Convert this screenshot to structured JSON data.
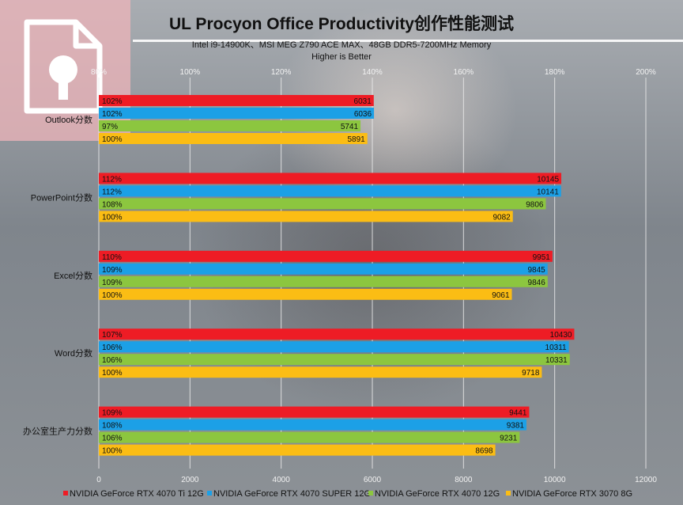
{
  "chart_data": {
    "type": "bar",
    "orientation": "horizontal",
    "title": "UL Procyon Office Productivity创作性能测试",
    "subtitle_lines": [
      "Intel i9-14900K、MSI MEG Z790 ACE MAX、48GB DDR5-7200MHz Memory",
      "Higher is Better"
    ],
    "categories": [
      "Outlook分数",
      "PowerPoint分数",
      "Excel分数",
      "Word分数",
      "办公室生产力分数"
    ],
    "x_top": {
      "min": 80,
      "max": 200,
      "step": 20,
      "suffix": "%"
    },
    "x_bottom": {
      "min": 0,
      "max": 12000,
      "step": 2000
    },
    "grid": true,
    "legend_position": "bottom",
    "series": [
      {
        "name": "NVIDIA GeForce RTX 4070 Ti 12G",
        "color": "#ee1c25",
        "values": [
          6031,
          10145,
          9951,
          10430,
          9441
        ],
        "percent": [
          "102%",
          "112%",
          "110%",
          "107%",
          "109%"
        ]
      },
      {
        "name": "NVIDIA GeForce RTX 4070 SUPER 12G",
        "color": "#1ca0e6",
        "values": [
          6036,
          10141,
          9845,
          10311,
          9381
        ],
        "percent": [
          "102%",
          "112%",
          "109%",
          "106%",
          "108%"
        ]
      },
      {
        "name": "NVIDIA GeForce RTX 4070 12G",
        "color": "#8cc63f",
        "values": [
          5741,
          9806,
          9846,
          10331,
          9231
        ],
        "percent": [
          "97%",
          "108%",
          "109%",
          "106%",
          "106%"
        ]
      },
      {
        "name": "NVIDIA GeForce RTX 3070 8G",
        "color": "#fbbd14",
        "values": [
          5891,
          9082,
          9061,
          9718,
          8698
        ],
        "percent": [
          "100%",
          "100%",
          "100%",
          "100%",
          "100%"
        ]
      }
    ]
  },
  "logo": {
    "name": "document-logo-icon",
    "color": "#ffffff"
  }
}
